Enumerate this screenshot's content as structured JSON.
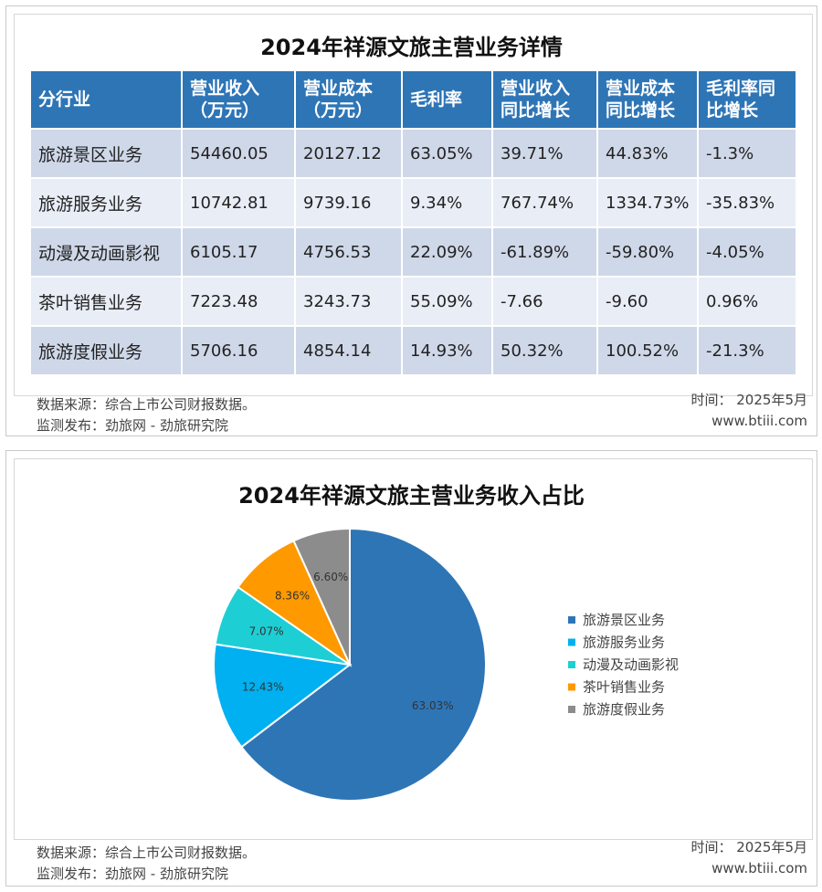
{
  "top_card": {
    "title": "2024年祥源文旅主营业务详情",
    "columns": [
      "分行业",
      "营业收入\n（万元）",
      "营业成本\n（万元）",
      "毛利率",
      "营业收入\n同比增长",
      "营业成本\n同比增长",
      "毛利率同\n比增长"
    ],
    "rows": [
      [
        "旅游景区业务",
        "54460.05",
        "20127.12",
        "63.05%",
        "39.71%",
        "44.83%",
        "-1.3%"
      ],
      [
        "旅游服务业务",
        "10742.81",
        "9739.16",
        "9.34%",
        "767.74%",
        "1334.73%",
        "-35.83%"
      ],
      [
        "动漫及动画影视",
        "6105.17",
        "4756.53",
        "22.09%",
        "-61.89%",
        "-59.80%",
        "-4.05%"
      ],
      [
        "茶叶销售业务",
        "7223.48",
        "3243.73",
        "55.09%",
        "-7.66",
        "-9.60",
        "0.96%"
      ],
      [
        "旅游度假业务",
        "5706.16",
        "4854.14",
        "14.93%",
        "50.32%",
        "100.52%",
        "-21.3%"
      ]
    ],
    "colors": {
      "header_bg": "#2e75b6",
      "row_dark": "#cfd8e9",
      "row_light": "#e8edf6"
    }
  },
  "footer": {
    "source": "数据来源：综合上市公司财报数据。",
    "publisher": "监测发布：劲旅网 - 劲旅研究院",
    "date": "时间：  2025年5月",
    "site": "www.btiii.com"
  },
  "chart_data": {
    "type": "pie",
    "title": "2024年祥源文旅主营业务收入占比",
    "categories": [
      "旅游景区业务",
      "旅游服务业务",
      "动漫及动画影视",
      "茶叶销售业务",
      "旅游度假业务"
    ],
    "values": [
      63.03,
      12.43,
      7.07,
      8.36,
      6.6
    ],
    "labels": [
      "63.03%",
      "12.43%",
      "7.07%",
      "8.36%",
      "6.60%"
    ],
    "colors": [
      "#2e75b6",
      "#00b0f0",
      "#1dcfd4",
      "#ff9900",
      "#8c8c8c"
    ],
    "legend": "right"
  }
}
